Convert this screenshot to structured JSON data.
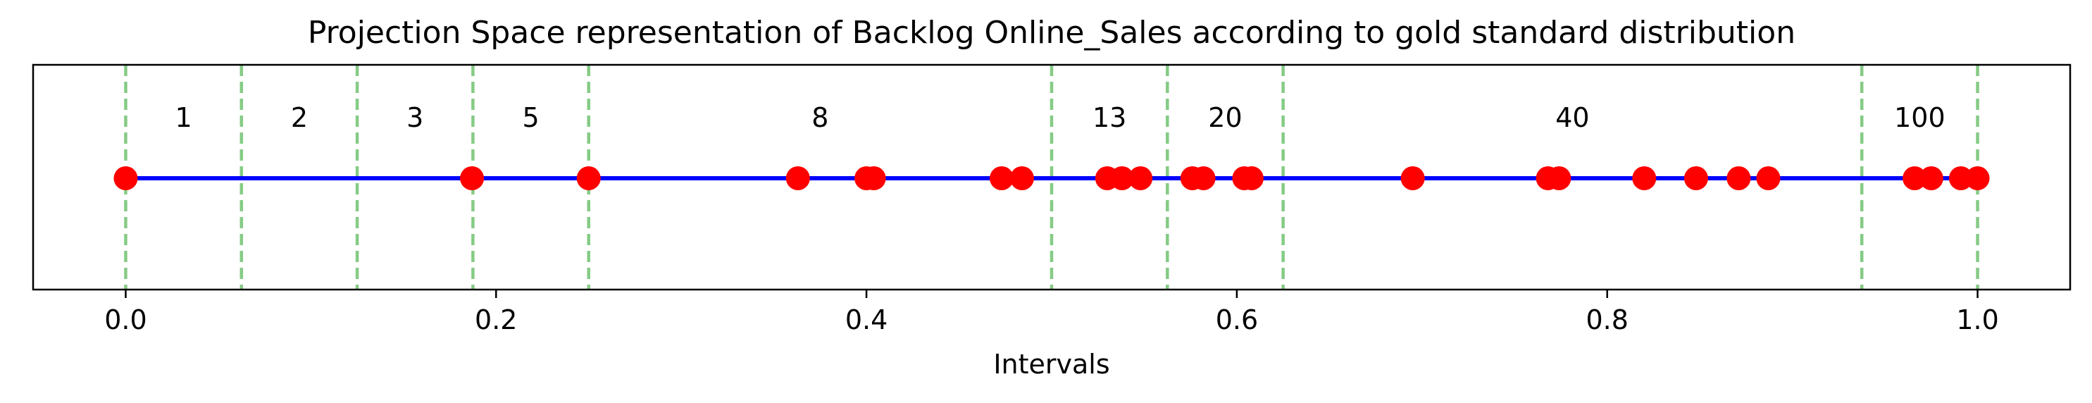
{
  "chart_data": {
    "type": "scatter",
    "title": "Projection Space representation of Backlog Online_Sales according to gold standard distribution",
    "xlabel": "Intervals",
    "ylabel": "",
    "xlim": [
      -0.05,
      1.05
    ],
    "x_ticks": [
      0.0,
      0.2,
      0.4,
      0.6,
      0.8,
      1.0
    ],
    "x_tick_labels": [
      "0.0",
      "0.2",
      "0.4",
      "0.6",
      "0.8",
      "1.0"
    ],
    "y_ticks_shown": false,
    "grid": false,
    "legend": "none",
    "line": {
      "x": [
        0.0,
        1.0
      ],
      "color": "#0000ff"
    },
    "boundaries": {
      "positions": [
        0.0,
        0.0625,
        0.125,
        0.1875,
        0.25,
        0.5,
        0.5625,
        0.625,
        0.9375,
        1.0
      ],
      "color": "#7fc97f",
      "style": "dashed"
    },
    "interval_labels": [
      {
        "text": "1",
        "x": 0.03125
      },
      {
        "text": "2",
        "x": 0.09375
      },
      {
        "text": "3",
        "x": 0.15625
      },
      {
        "text": "5",
        "x": 0.21875
      },
      {
        "text": "8",
        "x": 0.375
      },
      {
        "text": "13",
        "x": 0.53125
      },
      {
        "text": "20",
        "x": 0.59375
      },
      {
        "text": "40",
        "x": 0.78125
      },
      {
        "text": "100",
        "x": 0.96875
      }
    ],
    "points": {
      "color": "#ff0000",
      "x": [
        0.0,
        0.187,
        0.25,
        0.363,
        0.4,
        0.404,
        0.473,
        0.484,
        0.53,
        0.538,
        0.548,
        0.576,
        0.582,
        0.604,
        0.608,
        0.695,
        0.768,
        0.774,
        0.82,
        0.848,
        0.871,
        0.887,
        0.966,
        0.975,
        0.991,
        1.0
      ]
    }
  }
}
